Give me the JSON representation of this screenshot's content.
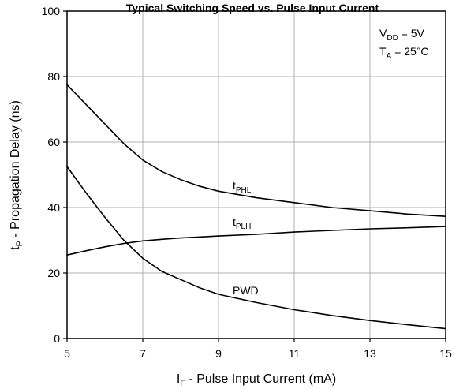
{
  "chart_data": {
    "type": "line",
    "title": "Typical Switching Speed vs. Pulse Input Current",
    "xlabel": {
      "main": "I",
      "sub": "F",
      "rest": " - Pulse Input Current (mA)"
    },
    "ylabel": {
      "main": "t",
      "sub": "P",
      "rest": " - Propagation Delay (ns)"
    },
    "xlim": [
      5,
      15
    ],
    "ylim": [
      0,
      100
    ],
    "xticks": [
      5,
      7,
      9,
      11,
      13,
      15
    ],
    "yticks": [
      0,
      20,
      40,
      60,
      80,
      100
    ],
    "grid": true,
    "conditions": [
      {
        "main": "V",
        "sub": "DD",
        "rest": " = 5V"
      },
      {
        "main": "T",
        "sub": "A",
        "rest": " = 25°C"
      }
    ],
    "series": [
      {
        "name": "tPHL",
        "label": {
          "main": "t",
          "sub": "PHL"
        },
        "x": [
          5,
          5.5,
          6,
          6.5,
          7,
          7.5,
          8,
          8.5,
          9,
          10,
          11,
          12,
          13,
          14,
          15
        ],
        "y": [
          77.5,
          71.5,
          65.5,
          59.5,
          54.5,
          51,
          48.5,
          46.5,
          45,
          43,
          41.5,
          40,
          39,
          38,
          37.3
        ]
      },
      {
        "name": "tPLH",
        "label": {
          "main": "t",
          "sub": "PLH"
        },
        "x": [
          5,
          5.5,
          6,
          6.5,
          7,
          7.5,
          8,
          9,
          10,
          11,
          12,
          13,
          14,
          15
        ],
        "y": [
          25.5,
          26.8,
          28,
          29,
          29.8,
          30.3,
          30.7,
          31.3,
          31.8,
          32.5,
          33,
          33.5,
          33.8,
          34.2
        ]
      },
      {
        "name": "PWD",
        "label": {
          "main": "PWD",
          "sub": ""
        },
        "x": [
          5,
          5.5,
          6,
          6.5,
          7,
          7.5,
          8,
          8.5,
          9,
          10,
          11,
          12,
          13,
          14,
          15
        ],
        "y": [
          52.5,
          44.5,
          37,
          30,
          24.5,
          20.5,
          18,
          15.5,
          13.5,
          11,
          8.8,
          7,
          5.5,
          4.2,
          3
        ]
      }
    ]
  }
}
